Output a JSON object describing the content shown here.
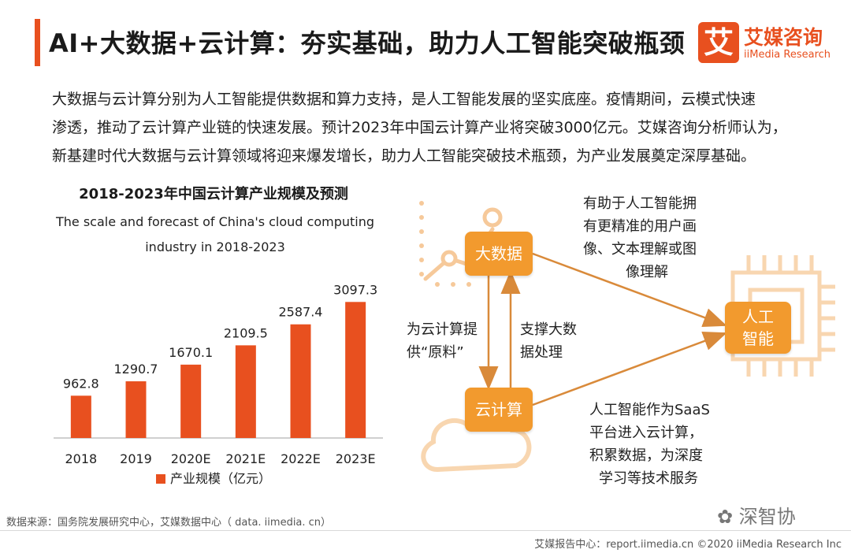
{
  "header": {
    "title": "AI+大数据+云计算：夯实基础，助力人工智能突破瓶颈",
    "logo_mark": "艾",
    "logo_cn": "艾媒咨询",
    "logo_en": "iiMedia Research"
  },
  "intro": {
    "line1": "大数据与云计算分别为人工智能提供数据和算力支持，是人工智能发展的坚实底座。疫情期间，云模式快速",
    "line2": "渗透，推动了云计算产业链的快速发展。预计2023年中国云计算产业将突破3000亿元。艾媒咨询分析师认为，",
    "line3": "新基建时代大数据与云计算领域将迎来爆发增长，助力人工智能突破技术瓶颈，为产业发展奠定深厚基础。"
  },
  "chart_data": {
    "type": "bar",
    "title": "2018-2023年中国云计算产业规模及预测",
    "subtitle_line1": "The scale and forecast of China's cloud computing",
    "subtitle_line2": "industry in 2018-2023",
    "categories": [
      "2018",
      "2019",
      "2020E",
      "2021E",
      "2022E",
      "2023E"
    ],
    "series": [
      {
        "name": "产业规模（亿元）",
        "values": [
          962.8,
          1290.7,
          1670.1,
          2109.5,
          2587.4,
          3097.3
        ],
        "color": "#e8501f"
      }
    ],
    "ylim": [
      0,
      3300
    ],
    "grid": false,
    "legend": "bottom"
  },
  "diagram": {
    "big_data": "大数据",
    "cloud": "云计算",
    "ai_line1": "人工",
    "ai_line2": "智能",
    "left_text": [
      "为云计算提",
      "供“原料”"
    ],
    "mid_text": [
      "支撑大数",
      "据处理"
    ],
    "top_text": [
      "有助于人工智能拥",
      "有更精准的用户画",
      "像、文本理解或图",
      "像理解"
    ],
    "bottom_text": [
      "人工智能作为SaaS",
      "平台进入云计算，",
      "积累数据，为深度",
      "学习等技术服务"
    ],
    "box_color": "#f29a2e",
    "arrow_color": "#d98a3a"
  },
  "source": "数据来源：国务院发展研究中心，艾媒数据中心（ data. iimedia. cn）",
  "footer": "艾媒报告中心：report.iimedia.cn  ©2020  iiMedia Research  Inc",
  "watermark": "深智协"
}
